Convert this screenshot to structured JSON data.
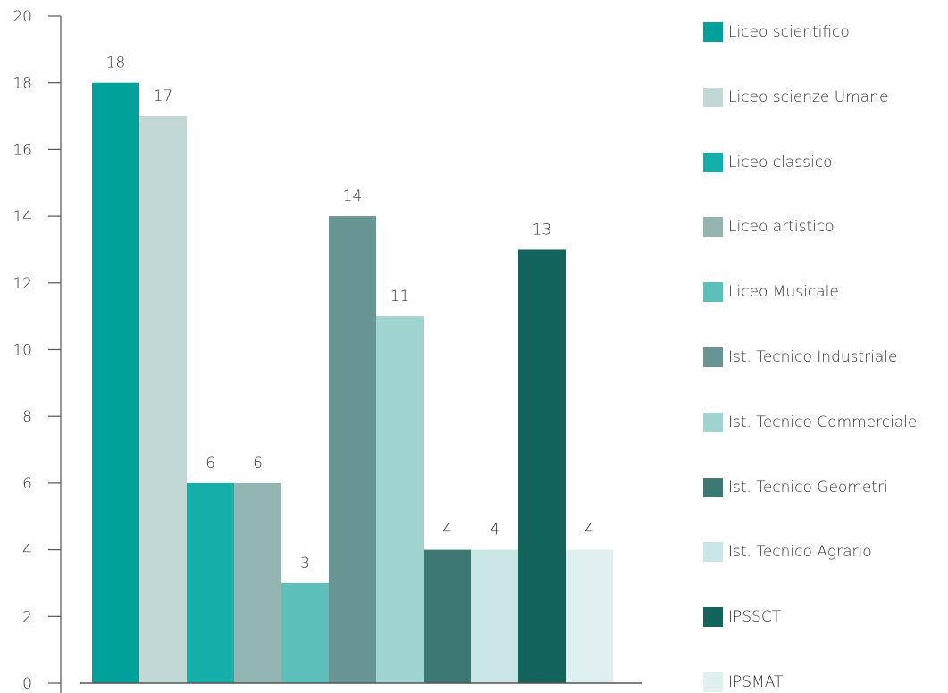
{
  "chart_data": {
    "type": "bar",
    "categories": [
      "Liceo scientifico",
      "Liceo scienze Umane",
      "Liceo classico",
      "Liceo artistico",
      "Liceo Musicale",
      "Ist. Tecnico Industriale",
      "Ist. Tecnico Commerciale",
      "Ist. Tecnico Geometri",
      "Ist. Tecnico Agrario",
      "IPSSCT",
      "IPSMAT"
    ],
    "values": [
      18,
      17,
      6,
      6,
      3,
      14,
      11,
      4,
      4,
      13,
      4
    ],
    "data_labels": [
      "18",
      "17",
      "6",
      "6",
      "3",
      "14",
      "11",
      "4",
      "4",
      "13",
      "4"
    ],
    "colors": [
      "#00a19a",
      "#c2d8d6",
      "#14afa8",
      "#93b5b2",
      "#5dbfba",
      "#679593",
      "#9fd4d1",
      "#3d7872",
      "#cae5e6",
      "#14645e",
      "#e0eff0"
    ],
    "yticks": [
      "0",
      "2",
      "4",
      "6",
      "8",
      "10",
      "12",
      "14",
      "16",
      "18",
      "20"
    ],
    "ylim": [
      0,
      20
    ],
    "title": "",
    "xlabel": "",
    "ylabel": "",
    "grid": false,
    "legend_position": "right"
  }
}
